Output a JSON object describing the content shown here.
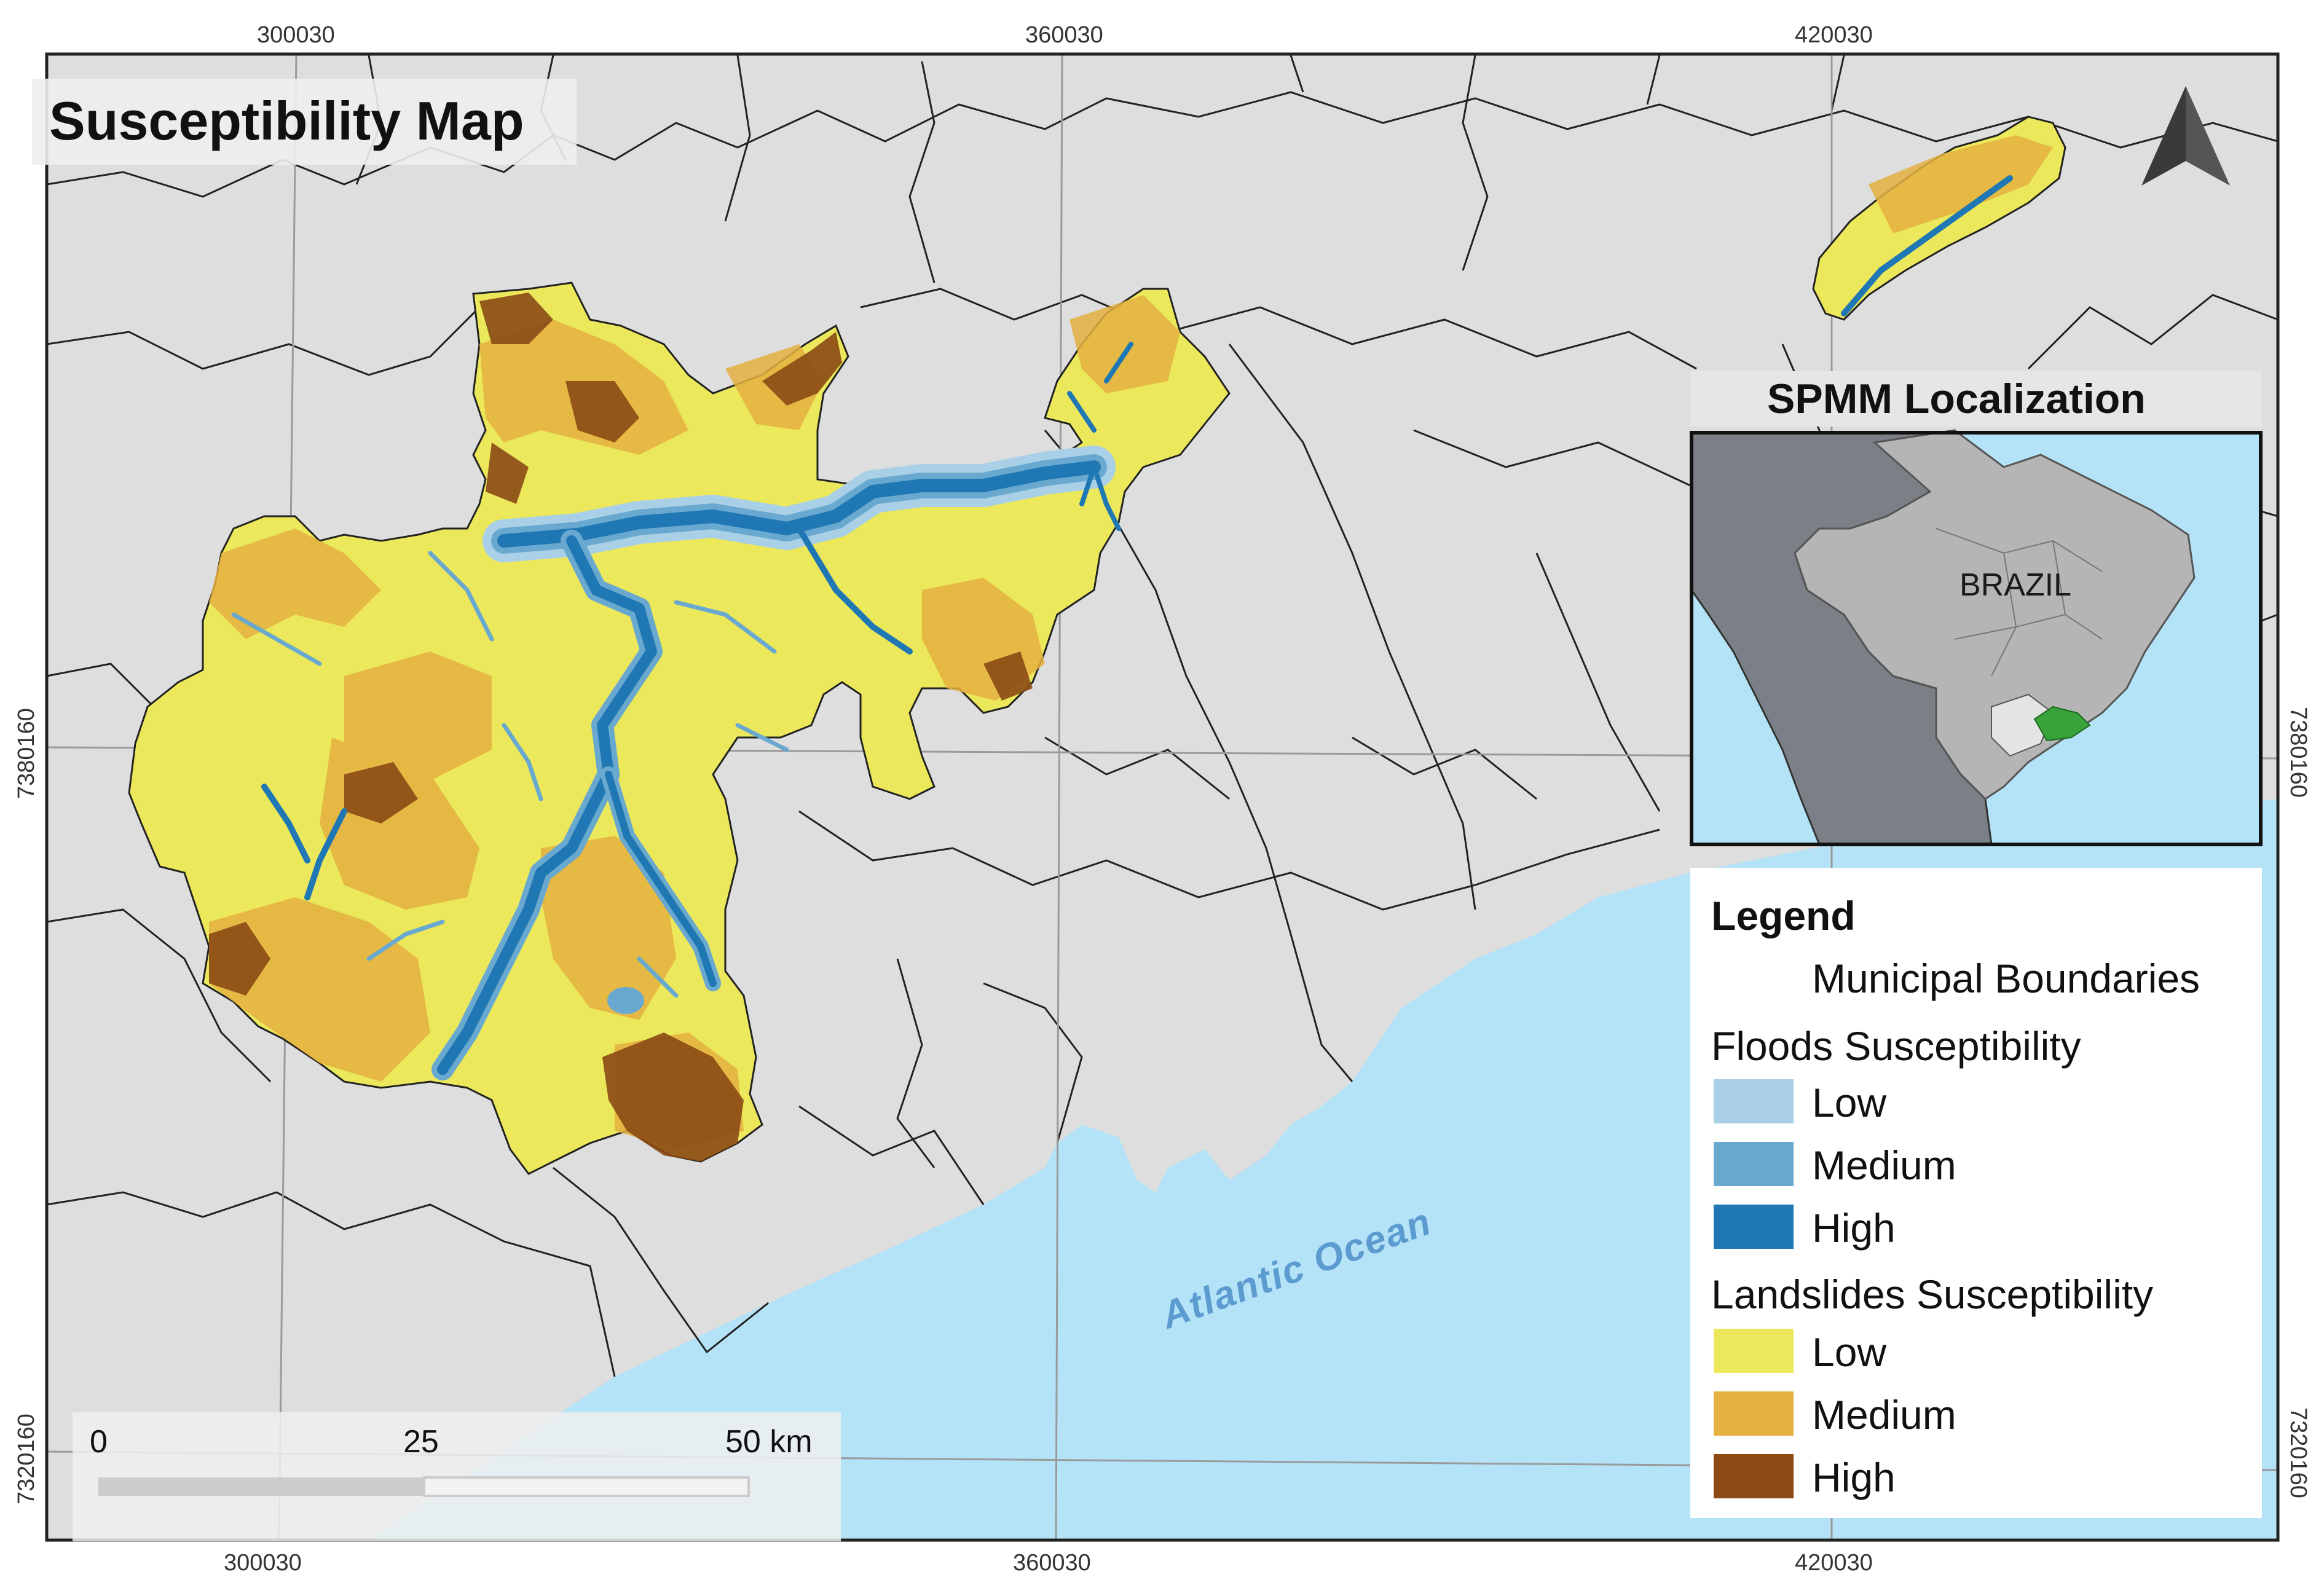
{
  "title": "Susceptibility Map",
  "inset": {
    "title": "SPMM Localization",
    "country_label": "BRAZIL",
    "colors": {
      "ocean": "#b4e2f7",
      "neighbors": "#7a8085",
      "brazil": "#b5b5b5",
      "state": "#e4e4e4",
      "study_area": "#37a33a"
    }
  },
  "coordinates": {
    "x_top": [
      "300030",
      "360030",
      "420030"
    ],
    "x_bottom": [
      "300030",
      "360030",
      "420030"
    ],
    "y_left": [
      "7380160",
      "7320160"
    ],
    "y_right": [
      "7380160",
      "7320160"
    ]
  },
  "north_arrow": {
    "icon": "north-arrow-icon"
  },
  "ocean_label": "Atlantic Ocean",
  "scale_bar": {
    "labels": [
      "0",
      "25",
      "50 km"
    ]
  },
  "legend": {
    "title": "Legend",
    "boundaries_label": "Municipal Boundaries",
    "floods": {
      "heading": "Floods Susceptibility",
      "classes": [
        {
          "label": "Low",
          "color": "#a9d0e6"
        },
        {
          "label": "Medium",
          "color": "#6aa9cf"
        },
        {
          "label": "High",
          "color": "#1f78b4"
        }
      ]
    },
    "landslides": {
      "heading": "Landslides Susceptibility",
      "classes": [
        {
          "label": "Low",
          "color": "#ece85c"
        },
        {
          "label": "Medium",
          "color": "#e4b040"
        },
        {
          "label": "High",
          "color": "#8b4a14"
        }
      ]
    }
  },
  "map_colors": {
    "land": "#dedede",
    "ocean": "#b4e2f7",
    "boundary": "#222222",
    "graticule": "#9a9a9a"
  }
}
